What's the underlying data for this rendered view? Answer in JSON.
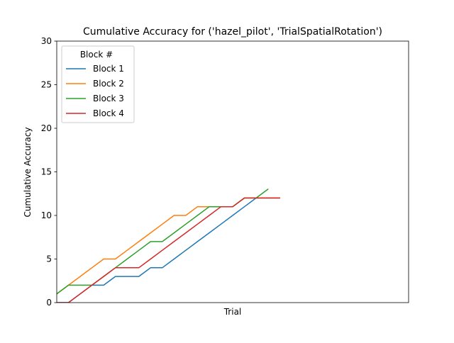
{
  "chart_data": {
    "type": "line",
    "title": "Cumulative Accuracy for ('hazel_pilot', 'TrialSpatialRotation')",
    "xlabel": "Trial",
    "ylabel": "Cumulative Accuracy",
    "xlim": [
      0,
      30
    ],
    "ylim": [
      0,
      30
    ],
    "yticks": [
      "0",
      "5",
      "10",
      "15",
      "20",
      "25",
      "30"
    ],
    "xticks": [],
    "legend": {
      "title": "Block #",
      "placement": "top-left"
    },
    "series": [
      {
        "name": "Block 1",
        "color": "#1f77b4",
        "x": [
          0,
          1,
          2,
          3,
          4,
          5,
          6,
          7,
          8,
          9,
          10,
          11,
          12,
          13,
          14,
          15,
          16,
          17,
          18,
          19
        ],
        "y": [
          0,
          0,
          1,
          2,
          2,
          3,
          3,
          3,
          4,
          4,
          5,
          6,
          7,
          8,
          9,
          10,
          11,
          12,
          12,
          12
        ]
      },
      {
        "name": "Block 2",
        "color": "#ff7f0e",
        "x": [
          0,
          1,
          2,
          3,
          4,
          5,
          6,
          7,
          8,
          9,
          10,
          11,
          12,
          13,
          14,
          15,
          16,
          17,
          18,
          19
        ],
        "y": [
          1,
          2,
          3,
          4,
          5,
          5,
          6,
          7,
          8,
          9,
          10,
          10,
          11,
          11,
          11,
          11,
          12,
          12,
          12,
          12
        ]
      },
      {
        "name": "Block 3",
        "color": "#2ca02c",
        "x": [
          0,
          1,
          2,
          3,
          4,
          5,
          6,
          7,
          8,
          9,
          10,
          11,
          12,
          13,
          14,
          15,
          16,
          17,
          18
        ],
        "y": [
          1,
          2,
          2,
          2,
          3,
          4,
          5,
          6,
          7,
          7,
          8,
          9,
          10,
          11,
          11,
          11,
          12,
          12,
          13
        ]
      },
      {
        "name": "Block 4",
        "color": "#d62728",
        "x": [
          0,
          1,
          2,
          3,
          4,
          5,
          6,
          7,
          8,
          9,
          10,
          11,
          12,
          13,
          14,
          15,
          16,
          17,
          18,
          19
        ],
        "y": [
          0,
          0,
          1,
          2,
          3,
          4,
          4,
          4,
          5,
          6,
          7,
          8,
          9,
          10,
          11,
          11,
          12,
          12,
          12,
          12
        ]
      }
    ]
  }
}
